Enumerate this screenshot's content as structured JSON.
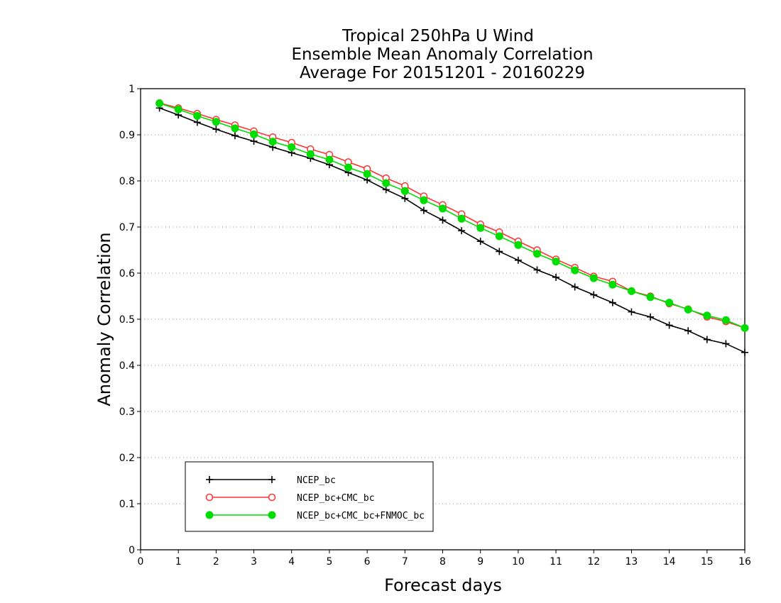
{
  "chart_data": {
    "type": "line",
    "title": [
      "Tropical 250hPa U Wind",
      "Ensemble Mean Anomaly Correlation",
      "Average For 20151201 - 20160229"
    ],
    "xlabel": "Forecast days",
    "ylabel": "Anomaly Correlation",
    "xlim": [
      0,
      16
    ],
    "ylim": [
      0,
      1
    ],
    "xticks": [
      "0",
      "1",
      "2",
      "3",
      "4",
      "5",
      "6",
      "7",
      "8",
      "9",
      "10",
      "11",
      "12",
      "13",
      "14",
      "15",
      "16"
    ],
    "yticks": [
      "0",
      "0.1",
      "0.2",
      "0.3",
      "0.4",
      "0.5",
      "0.6",
      "0.7",
      "0.8",
      "0.9",
      "1"
    ],
    "grid": "horizontal dotted",
    "legend_position": "bottom-left",
    "x": [
      0.5,
      1,
      1.5,
      2,
      2.5,
      3,
      3.5,
      4,
      4.5,
      5,
      5.5,
      6,
      6.5,
      7,
      7.5,
      8,
      8.5,
      9,
      9.5,
      10,
      10.5,
      11,
      11.5,
      12,
      12.5,
      13,
      13.5,
      14,
      14.5,
      15,
      15.5,
      16
    ],
    "series": [
      {
        "name": "NCEP_bc",
        "color": "#000000",
        "marker": "plus",
        "values": [
          0.958,
          0.943,
          0.927,
          0.912,
          0.898,
          0.886,
          0.873,
          0.861,
          0.849,
          0.835,
          0.818,
          0.802,
          0.781,
          0.762,
          0.736,
          0.715,
          0.692,
          0.669,
          0.647,
          0.628,
          0.607,
          0.591,
          0.57,
          0.553,
          0.536,
          0.516,
          0.505,
          0.487,
          0.475,
          0.456,
          0.447,
          0.428
        ]
      },
      {
        "name": "NCEP_bc+CMC_bc",
        "color": "#ff3333",
        "marker": "open-circle",
        "values": [
          0.969,
          0.958,
          0.946,
          0.933,
          0.921,
          0.908,
          0.895,
          0.883,
          0.869,
          0.857,
          0.841,
          0.826,
          0.806,
          0.789,
          0.767,
          0.748,
          0.728,
          0.706,
          0.689,
          0.669,
          0.65,
          0.63,
          0.612,
          0.593,
          0.582,
          0.561,
          0.55,
          0.534,
          0.522,
          0.505,
          0.495,
          0.481
        ]
      },
      {
        "name": "NCEP_bc+CMC_bc+FNMOC_bc",
        "color": "#00dd00",
        "marker": "filled-circle",
        "values": [
          0.968,
          0.955,
          0.941,
          0.928,
          0.914,
          0.901,
          0.885,
          0.873,
          0.858,
          0.846,
          0.829,
          0.815,
          0.795,
          0.778,
          0.758,
          0.74,
          0.718,
          0.698,
          0.68,
          0.661,
          0.642,
          0.625,
          0.606,
          0.589,
          0.575,
          0.561,
          0.548,
          0.536,
          0.521,
          0.508,
          0.498,
          0.481
        ]
      }
    ]
  }
}
